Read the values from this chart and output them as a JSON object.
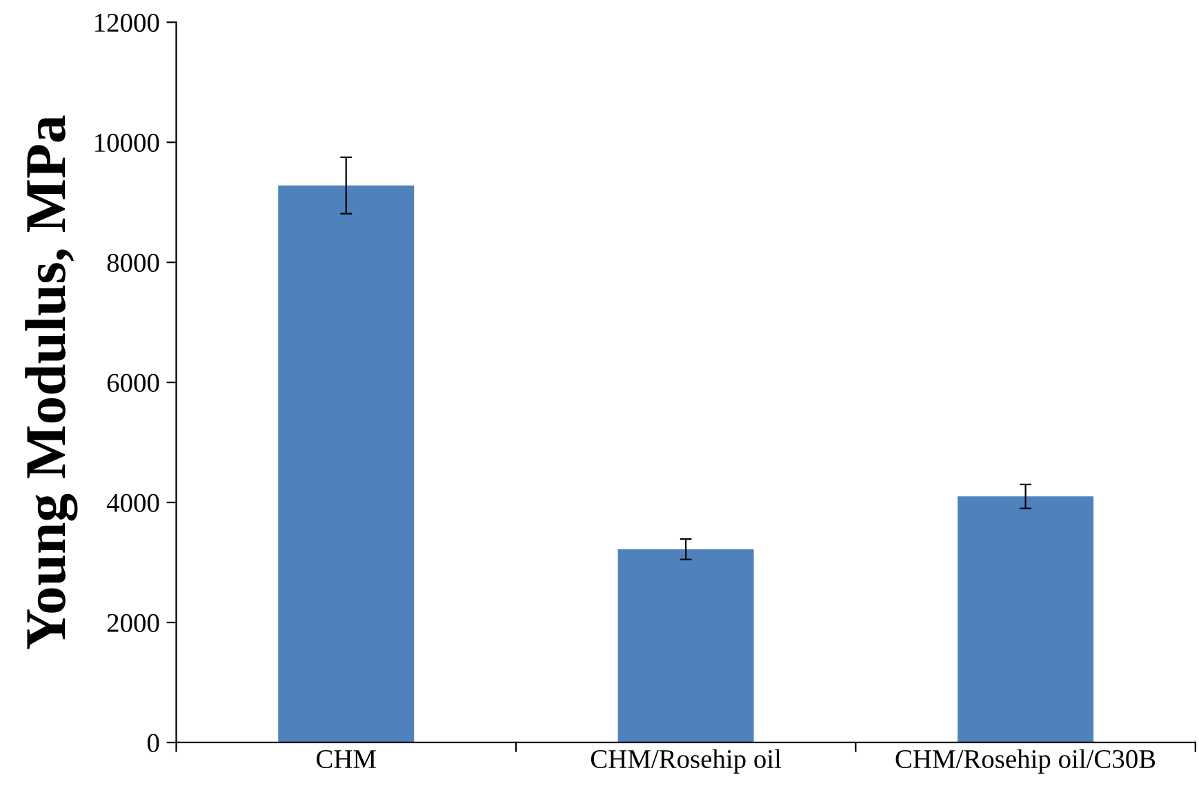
{
  "chart_data": {
    "type": "bar",
    "ylabel": "Young Modulus, MPa",
    "categories": [
      "CHM",
      "CHM/Rosehip oil",
      "CHM/Rosehip oil/C30B"
    ],
    "values": [
      9280,
      3220,
      4100
    ],
    "errors": [
      470,
      170,
      200
    ],
    "color": "#4f81bd",
    "ylim": [
      0,
      12000
    ],
    "yticks": [
      0,
      2000,
      4000,
      6000,
      8000,
      10000,
      12000
    ],
    "grid": false,
    "legend": false
  }
}
